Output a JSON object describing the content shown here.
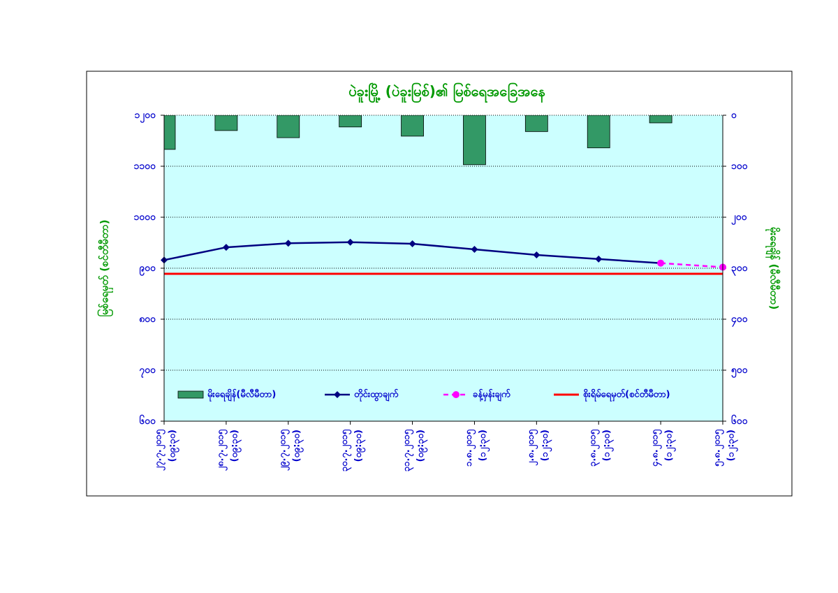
{
  "chart_data": {
    "type": "combo",
    "title": "ပဲခူးမြို့ (ပဲခူးမြစ်)၏ မြစ်ရေအခြေအနေ",
    "y_label": "မြစ်ရေမှတ် (စင်တီမီတာ)",
    "y2_label": "မိုးရေချိန် (မီလီမီတာ)",
    "categories": [
      [
        "၂၇.၇.၂၀၁၅",
        "(၀၉:၃၀)"
      ],
      [
        "၂၈.၇.၂၀၁၅",
        "(၀၉:၃၀)"
      ],
      [
        "၂၉.၇.၂၀၁၅",
        "(၀၉:၃၀)"
      ],
      [
        "၃၀.၇.၂၀၁၅",
        "(၀၉:၃၀)"
      ],
      [
        "၃၁.၇.၂၀၁၅",
        "(၀၉:၃၀)"
      ],
      [
        "၁.၈.၂၀၁၅",
        "(၁၂:၃၀)"
      ],
      [
        "၂.၈.၂၀၁၅",
        "(၁၂:၃၀)"
      ],
      [
        "၃.၈.၂၀၁၅",
        "(၁၂:၃၀)"
      ],
      [
        "၄.၈.၂၀၁၅",
        "(၁၂:၃၀)"
      ],
      [
        "၅.၈.၂၀၁၅",
        "(၁၂:၃၀)"
      ]
    ],
    "series": [
      {
        "name": "မိုးရေချိန်(မီလီမီတာ)",
        "kind": "bar",
        "axis": "y2",
        "color": "#339966",
        "values": [
          67,
          30,
          44,
          23,
          41,
          97,
          32,
          64,
          15,
          null
        ]
      },
      {
        "name": "တိုင်းထွာချက်",
        "kind": "line",
        "color": "#000080",
        "values": [
          916,
          941,
          949,
          951,
          948,
          937,
          926,
          918,
          910,
          null
        ]
      },
      {
        "name": "ခန့်မှန်းချက်",
        "kind": "line",
        "dashed": true,
        "color": "#ff00ff",
        "values": [
          null,
          null,
          null,
          null,
          null,
          null,
          null,
          null,
          910,
          902
        ]
      },
      {
        "name": "စိုးရိမ်ရေမှတ်(စင်တီမီတာ)",
        "kind": "line",
        "plain": true,
        "color": "#ff0000",
        "values": [
          889,
          889,
          889,
          889,
          889,
          889,
          889,
          889,
          889,
          889
        ]
      }
    ],
    "ylim": [
      600,
      1200
    ],
    "yticks": [
      {
        "value": 600,
        "label": "၆၀၀"
      },
      {
        "value": 700,
        "label": "၇၀၀"
      },
      {
        "value": 800,
        "label": "၈၀၀"
      },
      {
        "value": 900,
        "label": "၉၀၀"
      },
      {
        "value": 1000,
        "label": "၁၀၀၀"
      },
      {
        "value": 1100,
        "label": "၁၁၀၀"
      },
      {
        "value": 1200,
        "label": "၁၂၀၀"
      }
    ],
    "y2lim": [
      600,
      0
    ],
    "y2ticks": [
      {
        "value": 0,
        "label": "၀"
      },
      {
        "value": 100,
        "label": "၁၀၀"
      },
      {
        "value": 200,
        "label": "၂၀၀"
      },
      {
        "value": 300,
        "label": "၃၀၀"
      },
      {
        "value": 400,
        "label": "၄၀၀"
      },
      {
        "value": 500,
        "label": "၅၀၀"
      },
      {
        "value": 600,
        "label": "၆၀၀"
      }
    ],
    "grid": true,
    "plot_background": "#ccffff"
  }
}
